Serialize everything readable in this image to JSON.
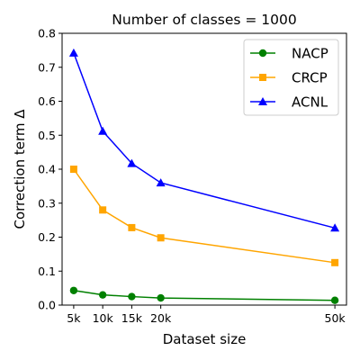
{
  "chart_data": {
    "type": "line",
    "title": "Number of classes = 1000",
    "xlabel": "Dataset size",
    "ylabel": "Correction term Δ",
    "x": [
      5000,
      10000,
      15000,
      20000,
      50000
    ],
    "x_tick_labels": [
      "5k",
      "10k",
      "15k",
      "20k",
      "50k"
    ],
    "xlim": [
      3000,
      52000
    ],
    "ylim": [
      0,
      0.8
    ],
    "y_ticks": [
      0.0,
      0.1,
      0.2,
      0.3,
      0.4,
      0.5,
      0.6,
      0.7,
      0.8
    ],
    "y_tick_labels": [
      "0.0",
      "0.1",
      "0.2",
      "0.3",
      "0.4",
      "0.5",
      "0.6",
      "0.7",
      "0.8"
    ],
    "legend_position": "top-right",
    "grid": false,
    "series": [
      {
        "name": "NACP",
        "color": "#008000",
        "marker": "circle",
        "values": [
          0.043,
          0.03,
          0.025,
          0.021,
          0.014
        ]
      },
      {
        "name": "CRCP",
        "color": "#ffa500",
        "marker": "square",
        "values": [
          0.4,
          0.28,
          0.228,
          0.198,
          0.125
        ]
      },
      {
        "name": "ACNL",
        "color": "#0000ff",
        "marker": "triangle",
        "values": [
          0.742,
          0.512,
          0.417,
          0.36,
          0.227
        ]
      }
    ]
  }
}
